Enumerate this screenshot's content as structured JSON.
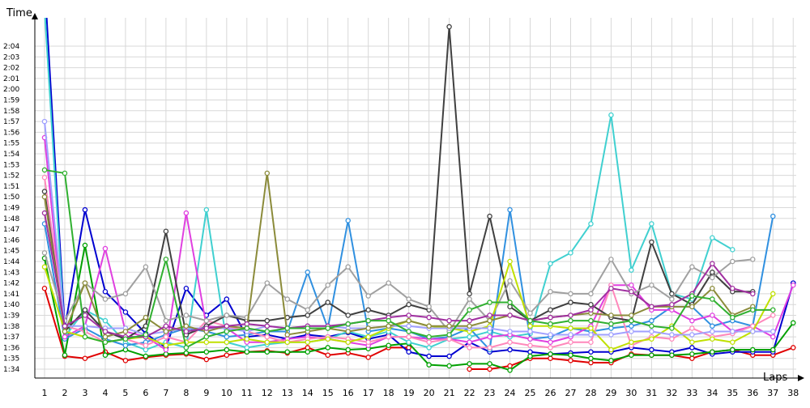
{
  "chart_data": {
    "type": "line",
    "xlabel": "Laps",
    "ylabel": "Time",
    "grid": true,
    "legend": "none",
    "x_ticks": [
      "1",
      "2",
      "3",
      "4",
      "5",
      "6",
      "7",
      "8",
      "9",
      "10",
      "11",
      "12",
      "13",
      "14",
      "15",
      "16",
      "17",
      "18",
      "19",
      "20",
      "21",
      "22",
      "23",
      "24",
      "25",
      "26",
      "27",
      "28",
      "29",
      "30",
      "31",
      "32",
      "33",
      "34",
      "35",
      "36",
      "37",
      "38"
    ],
    "y_ticks": [
      "1:34",
      "1:35",
      "1:36",
      "1:37",
      "1:38",
      "1:39",
      "1:40",
      "1:41",
      "1:42",
      "1:43",
      "1:44",
      "1:45",
      "1:46",
      "1:47",
      "1:48",
      "1:49",
      "1:50",
      "1:51",
      "1:52",
      "1:53",
      "1:54",
      "1:55",
      "1:56",
      "1:57",
      "1:58",
      "1:59",
      "2:00",
      "2:01",
      "2:02",
      "2:03",
      "2:04"
    ],
    "y_min_seconds": 94,
    "y_max_seconds": 124,
    "ylim_seconds": [
      93.0,
      125.5
    ],
    "series": [
      {
        "color": "#e00000",
        "values": [
          101.5,
          95.2,
          95.0,
          95.6,
          94.8,
          95.1,
          95.3,
          95.4,
          94.9,
          95.3,
          95.6,
          95.7,
          95.5,
          96.0,
          95.3,
          95.5,
          95.1,
          96.0,
          96.0,
          null,
          null,
          94.0,
          94.0,
          94.3,
          95.0,
          95.0,
          94.8,
          94.6,
          94.6,
          95.4,
          95.3,
          95.3,
          95.0,
          95.6,
          95.8,
          95.3,
          95.3,
          96.0
        ]
      },
      {
        "color": "#0000d0",
        "values": [
          130,
          97.8,
          108.8,
          101.2,
          99.3,
          97.3,
          96.0,
          101.5,
          99.0,
          100.5,
          97.0,
          97.2,
          96.8,
          97.2,
          97.0,
          97.4,
          96.8,
          97.2,
          95.6,
          95.2,
          95.2,
          96.5,
          95.6,
          95.8,
          95.6,
          95.4,
          95.5,
          95.6,
          95.6,
          96.0,
          95.8,
          95.6,
          96.0,
          95.4,
          95.6,
          95.6,
          95.6,
          102.0
        ]
      },
      {
        "color": "#00a000",
        "values": [
          104.3,
          95.3,
          105.5,
          95.3,
          95.8,
          95.2,
          95.4,
          95.5,
          95.6,
          95.8,
          95.6,
          95.6,
          95.6,
          95.6,
          96.0,
          95.8,
          95.9,
          96.2,
          96.4,
          94.4,
          94.3,
          94.5,
          94.5,
          93.9,
          95.2,
          95.4,
          95.3,
          95.0,
          94.8,
          95.3,
          95.3,
          95.3,
          95.4,
          95.6,
          95.8,
          95.8,
          95.8,
          98.3
        ]
      },
      {
        "color": "#40d0d0",
        "values": [
          127.5,
          97.0,
          99.5,
          98.5,
          96.5,
          95.8,
          96.5,
          96.0,
          108.8,
          96.5,
          96.0,
          96.3,
          96.5,
          96.5,
          96.8,
          97.5,
          97.0,
          97.5,
          96.5,
          96.0,
          96.8,
          97.0,
          97.5,
          97.0,
          97.3,
          103.8,
          104.8,
          107.5,
          117.6,
          103.2,
          107.5,
          101.0,
          100.5,
          106.2,
          105.1,
          null,
          null,
          null
        ]
      },
      {
        "color": "#3090e0",
        "values": [
          107.5,
          96.8,
          97.8,
          96.8,
          96.2,
          96.5,
          97.2,
          97.8,
          97.5,
          97.0,
          97.2,
          97.5,
          97.5,
          103.0,
          97.8,
          107.8,
          97.5,
          97.8,
          97.5,
          96.8,
          97.0,
          97.8,
          95.8,
          108.8,
          96.8,
          97.0,
          97.8,
          97.5,
          97.8,
          98.0,
          98.5,
          99.8,
          99.8,
          98.0,
          98.5,
          98.0,
          108.2,
          null
        ]
      },
      {
        "color": "#e040e0",
        "values": [
          115.5,
          97.0,
          98.0,
          105.2,
          97.5,
          97.0,
          95.8,
          108.5,
          98.0,
          97.8,
          96.5,
          96.5,
          96.8,
          97.0,
          96.8,
          96.5,
          96.2,
          97.0,
          97.0,
          96.8,
          96.8,
          96.5,
          97.0,
          97.2,
          96.8,
          96.5,
          97.0,
          98.0,
          101.8,
          101.8,
          99.5,
          99.5,
          98.5,
          99.0,
          97.5,
          98.0,
          97.0,
          101.8
        ]
      },
      {
        "color": "#ff88bb",
        "values": [
          111.8,
          98.0,
          97.5,
          96.5,
          96.8,
          96.2,
          97.0,
          96.5,
          98.5,
          98.0,
          97.5,
          97.0,
          96.5,
          96.8,
          97.0,
          96.8,
          96.5,
          97.0,
          97.0,
          96.5,
          96.8,
          96.0,
          96.0,
          96.5,
          96.2,
          96.0,
          96.5,
          96.5,
          101.8,
          96.2,
          97.0,
          96.8,
          97.8,
          97.0,
          97.3,
          98.0,
          99.0,
          null
        ]
      },
      {
        "color": "#404040",
        "values": [
          110.5,
          97.5,
          99.5,
          97.5,
          96.8,
          98.0,
          106.8,
          97.2,
          98.0,
          99.0,
          98.5,
          98.5,
          98.8,
          99.0,
          100.2,
          99.0,
          99.5,
          99.0,
          100.0,
          99.5,
          125.8,
          101.0,
          108.2,
          99.8,
          98.5,
          99.5,
          100.2,
          100.0,
          98.8,
          98.5,
          105.8,
          101.0,
          100.0,
          103.0,
          101.2,
          101.2,
          null,
          null
        ]
      },
      {
        "color": "#a0a0a0",
        "values": [
          104.8,
          98.5,
          102.0,
          100.5,
          101.0,
          103.5,
          98.5,
          99.0,
          98.5,
          99.0,
          98.8,
          102.0,
          100.5,
          99.5,
          101.8,
          103.5,
          100.8,
          102.0,
          100.5,
          99.8,
          97.5,
          100.5,
          98.5,
          102.2,
          99.2,
          101.2,
          101.0,
          101.0,
          104.2,
          101.0,
          101.8,
          100.5,
          103.5,
          102.5,
          104.0,
          104.2,
          null,
          null
        ]
      },
      {
        "color": "#c0e000",
        "values": [
          103.5,
          97.5,
          97.0,
          96.5,
          96.8,
          97.0,
          96.2,
          96.5,
          96.5,
          96.5,
          96.8,
          96.5,
          96.5,
          96.5,
          96.8,
          96.5,
          97.0,
          97.8,
          98.5,
          98.0,
          97.8,
          97.5,
          98.0,
          104.0,
          98.0,
          98.0,
          97.8,
          97.8,
          95.8,
          96.5,
          96.8,
          98.0,
          96.5,
          96.8,
          96.5,
          97.5,
          101.0,
          null
        ]
      },
      {
        "color": "#a0a0ff",
        "values": [
          117.0,
          98.0,
          98.0,
          97.8,
          97.8,
          97.2,
          97.5,
          97.8,
          97.8,
          97.8,
          97.5,
          98.0,
          97.8,
          98.0,
          98.0,
          97.8,
          97.8,
          98.0,
          98.0,
          97.8,
          97.8,
          97.8,
          97.8,
          97.5,
          97.5,
          97.2,
          97.2,
          97.2,
          97.2,
          97.5,
          97.5,
          97.2,
          97.2,
          97.5,
          97.5,
          97.5,
          97.5,
          null
        ]
      },
      {
        "color": "#8b8b3a",
        "values": [
          110.0,
          97.5,
          102.0,
          97.0,
          97.5,
          98.8,
          97.5,
          98.0,
          97.5,
          98.0,
          97.8,
          112.2,
          97.2,
          97.5,
          97.8,
          97.5,
          97.8,
          98.0,
          98.5,
          98.0,
          98.0,
          98.0,
          98.5,
          99.0,
          98.5,
          98.8,
          99.0,
          99.2,
          99.0,
          99.0,
          99.8,
          99.8,
          99.8,
          101.5,
          99.0,
          99.8,
          null,
          null
        ]
      },
      {
        "color": "#a030a0",
        "values": [
          108.5,
          98.0,
          99.0,
          97.5,
          97.0,
          97.0,
          98.0,
          97.5,
          97.8,
          98.0,
          98.2,
          98.0,
          97.8,
          98.0,
          98.0,
          98.2,
          98.5,
          98.8,
          99.0,
          98.8,
          98.5,
          98.5,
          99.0,
          99.0,
          98.5,
          98.8,
          99.0,
          99.5,
          101.5,
          101.2,
          99.8,
          100.0,
          101.0,
          103.8,
          101.5,
          101.0,
          null,
          null
        ]
      },
      {
        "color": "#30b030",
        "values": [
          112.5,
          112.2,
          97.0,
          96.5,
          96.8,
          97.2,
          104.2,
          96.0,
          97.0,
          97.5,
          97.8,
          97.5,
          97.8,
          97.8,
          97.8,
          98.2,
          98.5,
          98.5,
          97.5,
          97.0,
          97.2,
          99.5,
          100.2,
          100.2,
          98.5,
          98.2,
          98.5,
          98.5,
          98.2,
          98.5,
          98.0,
          97.8,
          100.8,
          100.5,
          98.8,
          99.5,
          99.5,
          null
        ]
      }
    ]
  }
}
